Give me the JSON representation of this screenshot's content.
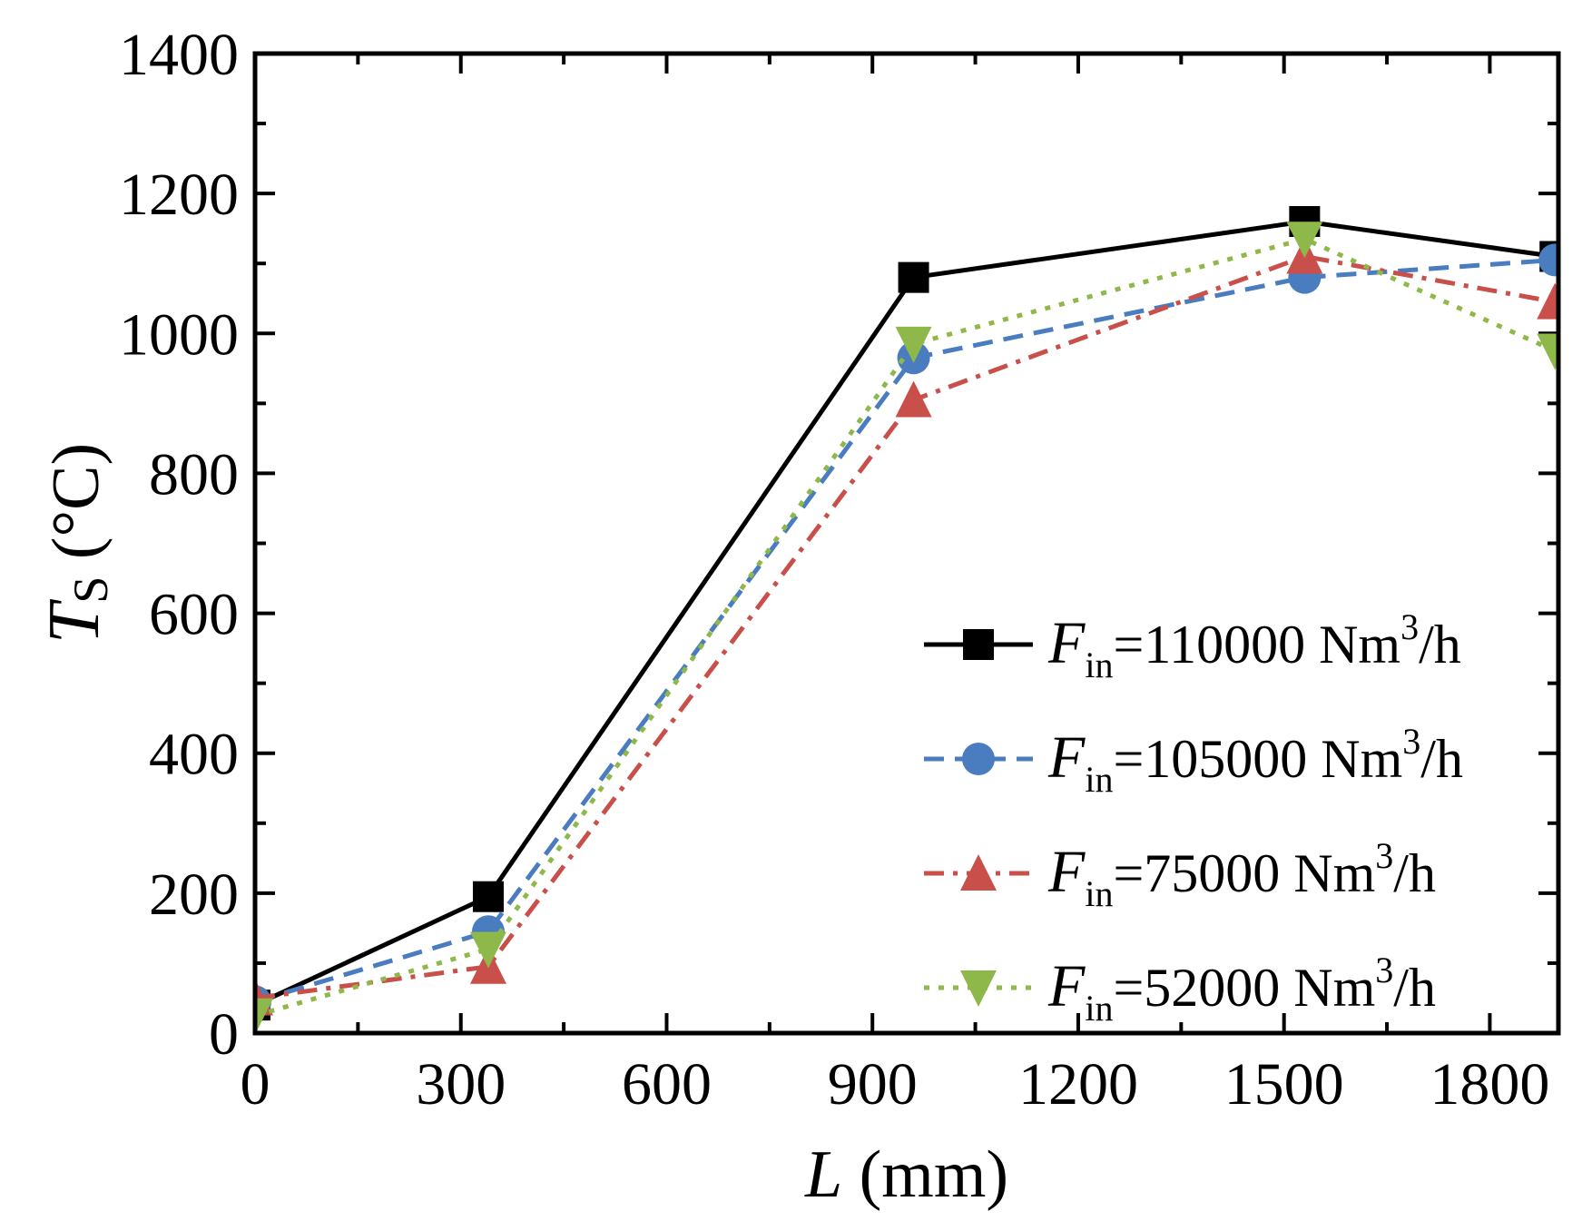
{
  "chart_data": {
    "type": "line",
    "title": "",
    "xlabel": {
      "italic": "L",
      "rest": " (mm)"
    },
    "ylabel": {
      "italic": "T",
      "sub": "S",
      "rest": " (°C)"
    },
    "xlim": [
      0,
      1900
    ],
    "ylim": [
      0,
      1400
    ],
    "x_ticks": [
      0,
      300,
      600,
      900,
      1200,
      1500,
      1800
    ],
    "x_tick_labels": [
      "0",
      "300",
      "600",
      "900",
      "1200",
      "1500",
      "1800"
    ],
    "x_minor_step": 150,
    "y_ticks": [
      0,
      200,
      400,
      600,
      800,
      1000,
      1200,
      1400
    ],
    "y_tick_labels": [
      "0",
      "200",
      "400",
      "600",
      "800",
      "1000",
      "1200",
      "1400"
    ],
    "y_minor_step": 100,
    "grid": false,
    "legend_position": "lower-right",
    "x": [
      0,
      340,
      960,
      1530,
      1895
    ],
    "series": [
      {
        "name": "Fin=110000 Nm3/h",
        "label": {
          "italic": "F",
          "sub": "in",
          "main": "=110000 Nm",
          "sup": "3",
          "unit": "/h"
        },
        "values": [
          40,
          195,
          1080,
          1160,
          1110
        ],
        "color": "#000000",
        "dash": "solid",
        "marker": "square"
      },
      {
        "name": "Fin=105000 Nm3/h",
        "label": {
          "italic": "F",
          "sub": "in",
          "main": "=105000 Nm",
          "sup": "3",
          "unit": "/h"
        },
        "values": [
          45,
          145,
          965,
          1080,
          1105
        ],
        "color": "#4a7cc0",
        "dash": "dash",
        "marker": "circle"
      },
      {
        "name": "Fin=75000 Nm3/h",
        "label": {
          "italic": "F",
          "sub": "in",
          "main": "=75000 Nm",
          "sup": "3",
          "unit": "/h"
        },
        "values": [
          50,
          95,
          905,
          1110,
          1045
        ],
        "color": "#c9504a",
        "dash": "dashdot",
        "marker": "triangle-up"
      },
      {
        "name": "Fin=52000 Nm3/h",
        "label": {
          "italic": "F",
          "sub": "in",
          "main": "=52000 Nm",
          "sup": "3",
          "unit": "/h"
        },
        "values": [
          25,
          120,
          985,
          1135,
          975
        ],
        "color": "#8fb84b",
        "dash": "dot",
        "marker": "triangle-down"
      }
    ]
  }
}
